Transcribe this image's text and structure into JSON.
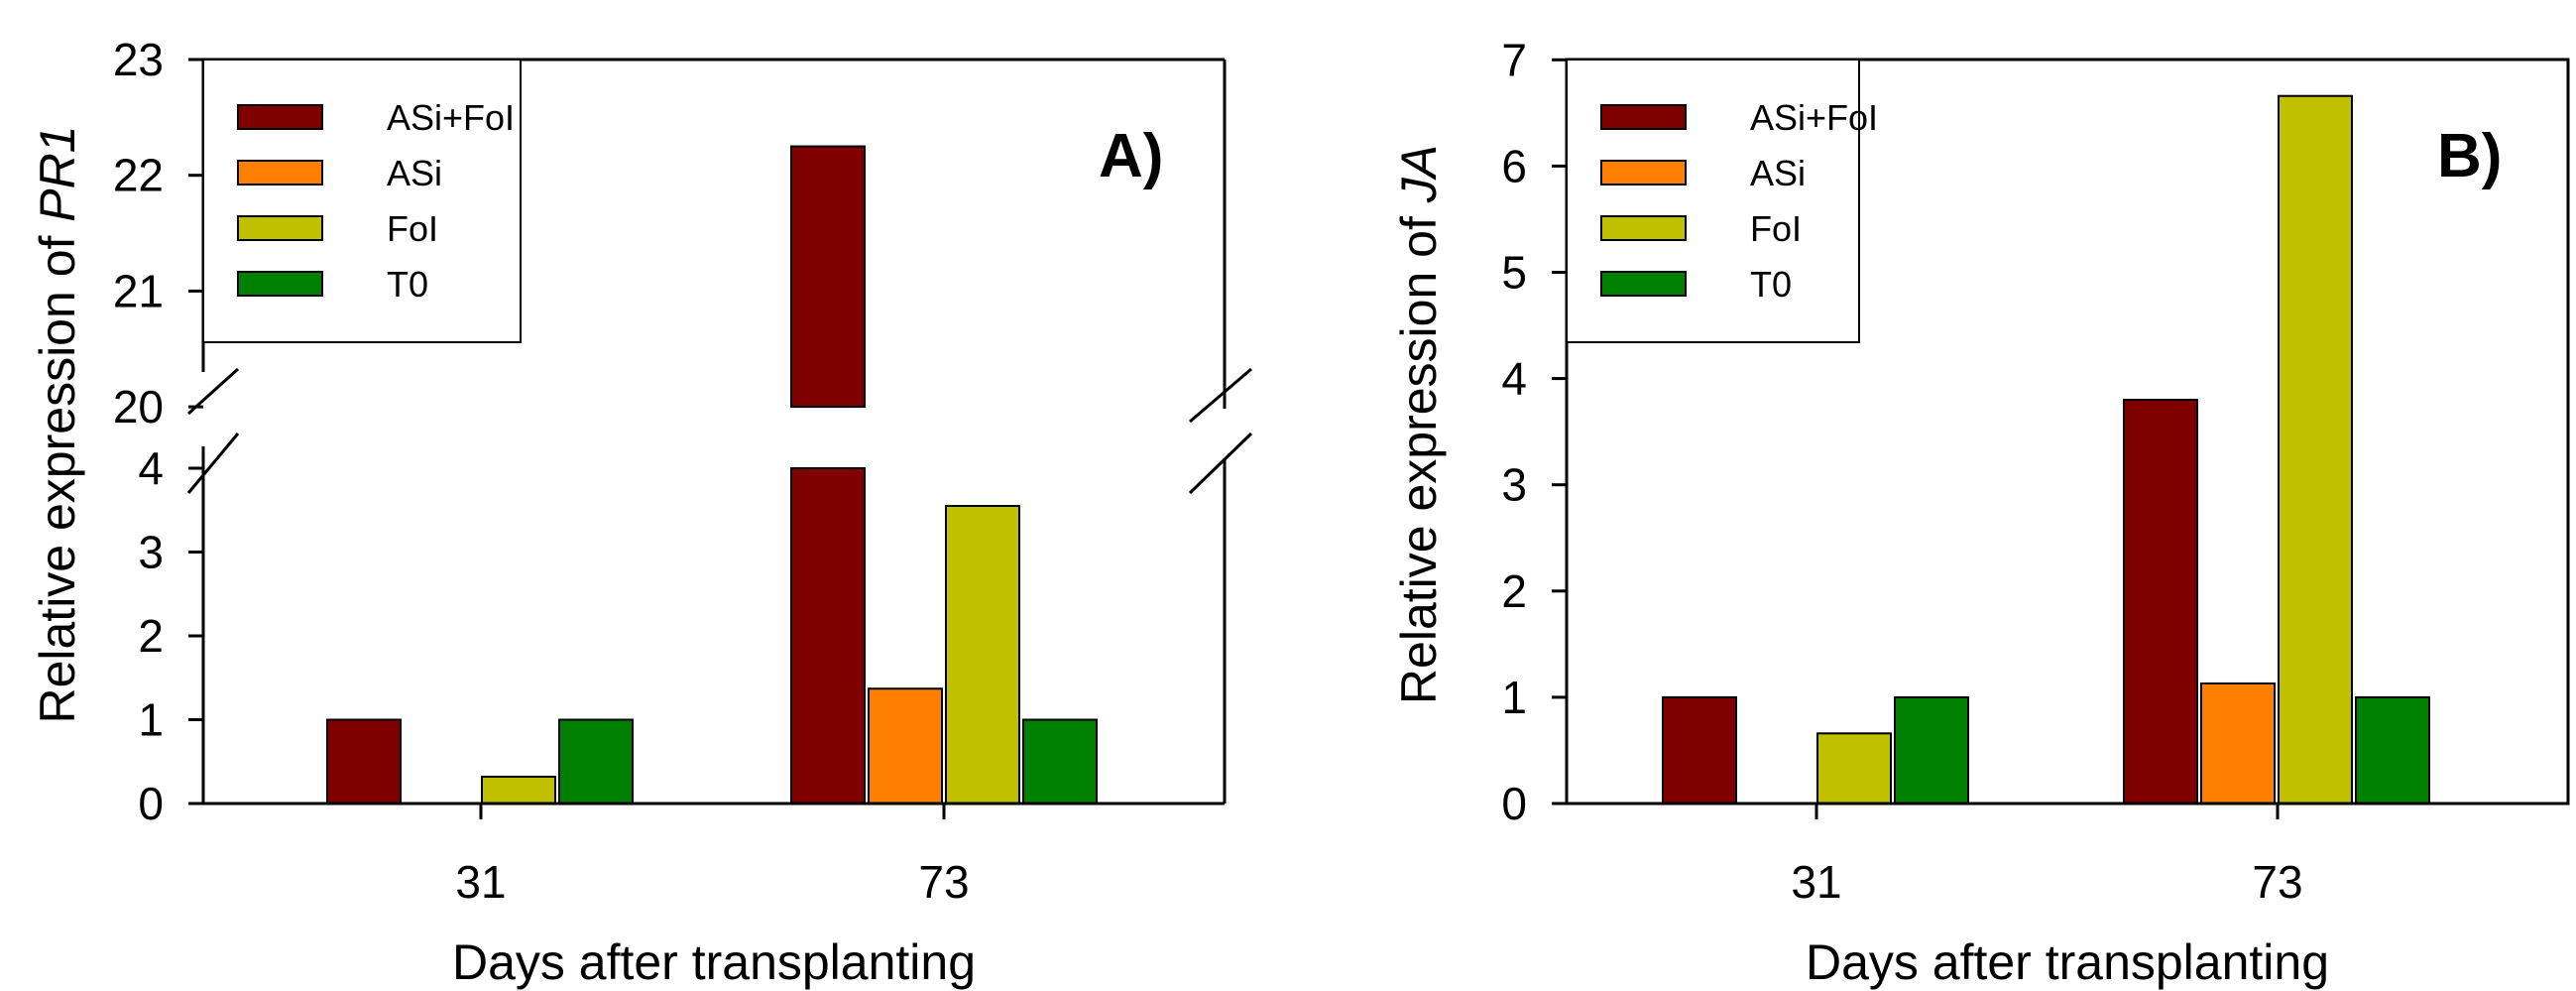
{
  "chart_data": [
    {
      "type": "bar",
      "panel_label": "A)",
      "categories": [
        "31",
        "73"
      ],
      "xlabel": "Days after transplanting",
      "ylabel_prefix": "Relative expression of ",
      "ylabel_gene": "PR1",
      "axis_break": {
        "lower_range": [
          0,
          4
        ],
        "upper_range": [
          20,
          23
        ]
      },
      "lower_ticks": [
        0,
        1,
        2,
        3,
        4
      ],
      "upper_ticks": [
        20,
        21,
        22,
        23
      ],
      "legend_position": "top-left",
      "series": [
        {
          "name": "ASi+FoI",
          "color": "#800000",
          "values": [
            1.0,
            22.25
          ]
        },
        {
          "name": "ASi",
          "color": "#ff8000",
          "values": [
            0,
            1.37
          ]
        },
        {
          "name": "FoI",
          "color": "#c0c000",
          "values": [
            0.32,
            3.55
          ]
        },
        {
          "name": "T0",
          "color": "#008000",
          "values": [
            1.0,
            1.0
          ]
        }
      ]
    },
    {
      "type": "bar",
      "panel_label": "B)",
      "categories": [
        "31",
        "73"
      ],
      "xlabel": "Days after transplanting",
      "ylabel_prefix": "Relative expression of ",
      "ylabel_gene": "JA",
      "ylim": [
        0,
        7
      ],
      "ticks": [
        0,
        1,
        2,
        3,
        4,
        5,
        6,
        7
      ],
      "legend_position": "top-left",
      "series": [
        {
          "name": "ASi+FoI",
          "color": "#800000",
          "values": [
            1.0,
            3.8
          ]
        },
        {
          "name": "ASi",
          "color": "#ff8000",
          "values": [
            0,
            1.13
          ]
        },
        {
          "name": "FoI",
          "color": "#c0c000",
          "values": [
            0.66,
            6.66
          ]
        },
        {
          "name": "T0",
          "color": "#008000",
          "values": [
            1.0,
            1.0
          ]
        }
      ]
    }
  ]
}
